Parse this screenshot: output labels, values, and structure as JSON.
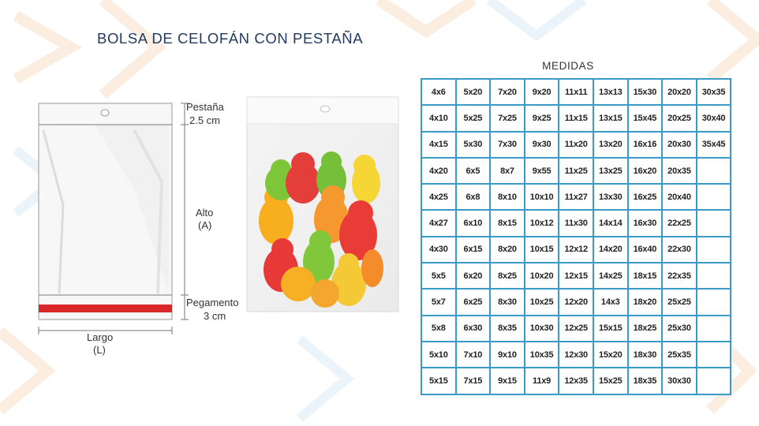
{
  "title": "BOLSA DE CELOFÁN CON PESTAÑA",
  "diagram": {
    "tab_label": "Pestaña",
    "tab_size": "2.5 cm",
    "height_label": "Alto",
    "height_code": "(A)",
    "glue_label": "Pegamento",
    "glue_size": "3 cm",
    "width_label": "Largo",
    "width_code": "(L)",
    "glue_strip_color": "#d9262a"
  },
  "photo": {
    "subject": "gummy-bears-in-bag"
  },
  "sizes": {
    "title": "MEDIDAS",
    "border_color": "#3a9bc7",
    "rows": [
      [
        "4x6",
        "5x20",
        "7x20",
        "9x20",
        "11x11",
        "13x13",
        "15x30",
        "20x20",
        "30x35"
      ],
      [
        "4x10",
        "5x25",
        "7x25",
        "9x25",
        "11x15",
        "13x15",
        "15x45",
        "20x25",
        "30x40"
      ],
      [
        "4x15",
        "5x30",
        "7x30",
        "9x30",
        "11x20",
        "13x20",
        "16x16",
        "20x30",
        "35x45"
      ],
      [
        "4x20",
        "6x5",
        "8x7",
        "9x55",
        "11x25",
        "13x25",
        "16x20",
        "20x35",
        ""
      ],
      [
        "4x25",
        "6x8",
        "8x10",
        "10x10",
        "11x27",
        "13x30",
        "16x25",
        "20x40",
        ""
      ],
      [
        "4x27",
        "6x10",
        "8x15",
        "10x12",
        "11x30",
        "14x14",
        "16x30",
        "22x25",
        ""
      ],
      [
        "4x30",
        "6x15",
        "8x20",
        "10x15",
        "12x12",
        "14x20",
        "16x40",
        "22x30",
        ""
      ],
      [
        "5x5",
        "6x20",
        "8x25",
        "10x20",
        "12x15",
        "14x25",
        "18x15",
        "22x35",
        ""
      ],
      [
        "5x7",
        "6x25",
        "8x30",
        "10x25",
        "12x20",
        "14x3",
        "18x20",
        "25x25",
        ""
      ],
      [
        "5x8",
        "6x30",
        "8x35",
        "10x30",
        "12x25",
        "15x15",
        "18x25",
        "25x30",
        ""
      ],
      [
        "5x10",
        "7x10",
        "9x10",
        "10x35",
        "12x30",
        "15x20",
        "18x30",
        "25x35",
        ""
      ],
      [
        "5x15",
        "7x15",
        "9x15",
        "11x9",
        "12x35",
        "15x25",
        "18x35",
        "30x30",
        ""
      ]
    ]
  }
}
